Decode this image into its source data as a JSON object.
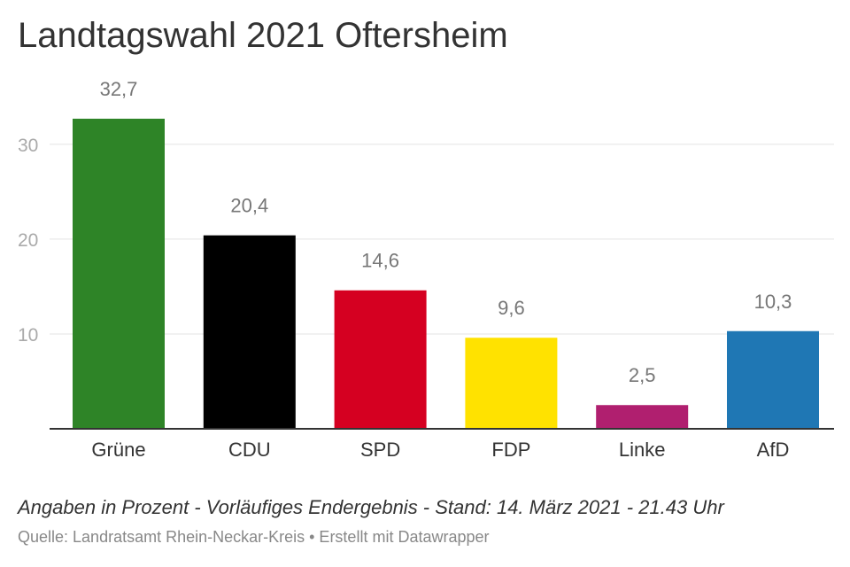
{
  "header": {
    "title": "Landtagswahl 2021 Oftersheim"
  },
  "chart_data": {
    "type": "bar",
    "title": "Landtagswahl 2021 Oftersheim",
    "categories": [
      "Grüne",
      "CDU",
      "SPD",
      "FDP",
      "Linke",
      "AfD"
    ],
    "values": [
      32.7,
      20.4,
      14.6,
      9.6,
      2.5,
      10.3
    ],
    "value_labels": [
      "32,7",
      "20,4",
      "14,6",
      "9,6",
      "2,5",
      "10,3"
    ],
    "colors": [
      "#2e8427",
      "#000000",
      "#d50021",
      "#ffe200",
      "#b01f6f",
      "#1f77b4"
    ],
    "yticks": [
      10,
      20,
      30
    ],
    "ylim": [
      0,
      32.7
    ],
    "grid": true,
    "xlabel": "",
    "ylabel": ""
  },
  "footer": {
    "note": "Angaben in Prozent - Vorläufiges Endergebnis - Stand: 14. März 2021 - 21.43 Uhr",
    "source": "Quelle: Landratsamt Rhein-Neckar-Kreis • Erstellt mit Datawrapper"
  }
}
